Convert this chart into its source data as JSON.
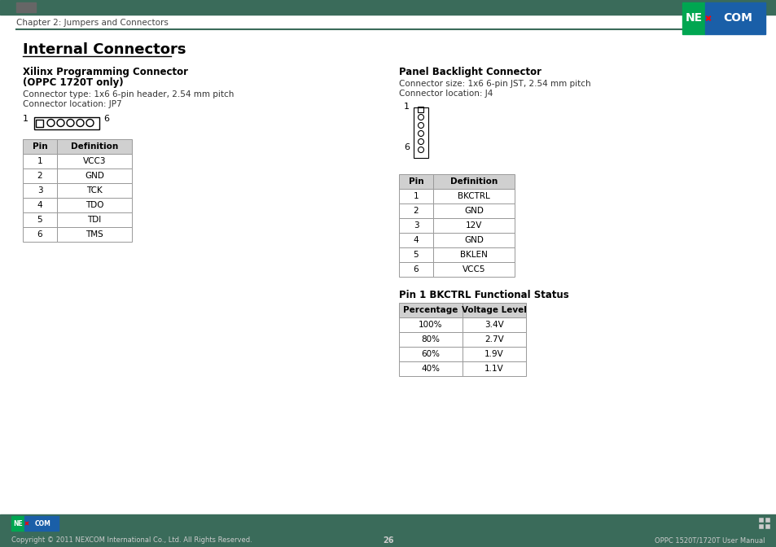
{
  "page_title": "Chapter 2: Jumpers and Connectors",
  "section_title": "Internal Connectors",
  "left_connector_title_1": "Xilinx Programming Connector",
  "left_connector_title_2": "(OPPC 1720T only)",
  "left_connector_type": "Connector type: 1x6 6-pin header, 2.54 mm pitch",
  "left_connector_location": "Connector location: JP7",
  "left_table_headers": [
    "Pin",
    "Definition"
  ],
  "left_table_rows": [
    [
      "1",
      "VCC3"
    ],
    [
      "2",
      "GND"
    ],
    [
      "3",
      "TCK"
    ],
    [
      "4",
      "TDO"
    ],
    [
      "5",
      "TDI"
    ],
    [
      "6",
      "TMS"
    ]
  ],
  "right_connector_title": "Panel Backlight Connector",
  "right_connector_size": "Connector size: 1x6 6-pin JST, 2.54 mm pitch",
  "right_connector_location": "Connector location: J4",
  "right_table_headers": [
    "Pin",
    "Definition"
  ],
  "right_table_rows": [
    [
      "1",
      "BKCTRL"
    ],
    [
      "2",
      "GND"
    ],
    [
      "3",
      "12V"
    ],
    [
      "4",
      "GND"
    ],
    [
      "5",
      "BKLEN"
    ],
    [
      "6",
      "VCC5"
    ]
  ],
  "functional_title": "Pin 1 BKCTRL Functional Status",
  "functional_headers": [
    "Percentage",
    "Voltage Level"
  ],
  "functional_rows": [
    [
      "100%",
      "3.4V"
    ],
    [
      "80%",
      "2.7V"
    ],
    [
      "60%",
      "1.9V"
    ],
    [
      "40%",
      "1.1V"
    ]
  ],
  "footer_bar_color": "#3a6b5a",
  "footer_text_left": "Copyright © 2011 NEXCOM International Co., Ltd. All Rights Reserved.",
  "footer_page_num": "26",
  "footer_text_right": "OPPC 1520T/1720T User Manual",
  "header_bar_color": "#3a6b5a",
  "logo_green": "#00a651",
  "logo_blue": "#1a5fa8",
  "bg_color": "#ffffff",
  "table_header_bg": "#d0d0d0",
  "table_border": "#999999",
  "separator_color": "#3a6b5a",
  "dark_rect_color": "#666666"
}
